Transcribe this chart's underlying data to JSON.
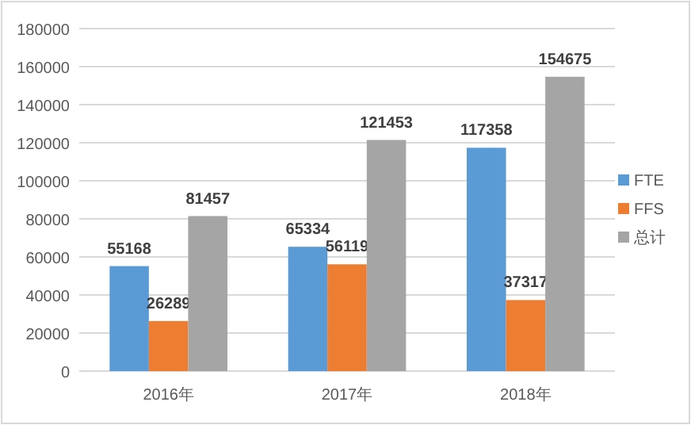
{
  "chart_data": {
    "type": "bar",
    "categories": [
      "2016年",
      "2017年",
      "2018年"
    ],
    "series": [
      {
        "name": "FTE",
        "color": "#5b9bd5",
        "values": [
          55168,
          65334,
          117358
        ]
      },
      {
        "name": "FFS",
        "color": "#ed7d31",
        "values": [
          26289,
          56119,
          37317
        ]
      },
      {
        "name": "总计",
        "color": "#a5a5a5",
        "values": [
          81457,
          121453,
          154675
        ]
      }
    ],
    "ylim": [
      0,
      180000
    ],
    "yticks": [
      0,
      20000,
      40000,
      60000,
      80000,
      100000,
      120000,
      140000,
      160000,
      180000
    ],
    "grid": "y",
    "legend": "right",
    "data_labels": true
  }
}
